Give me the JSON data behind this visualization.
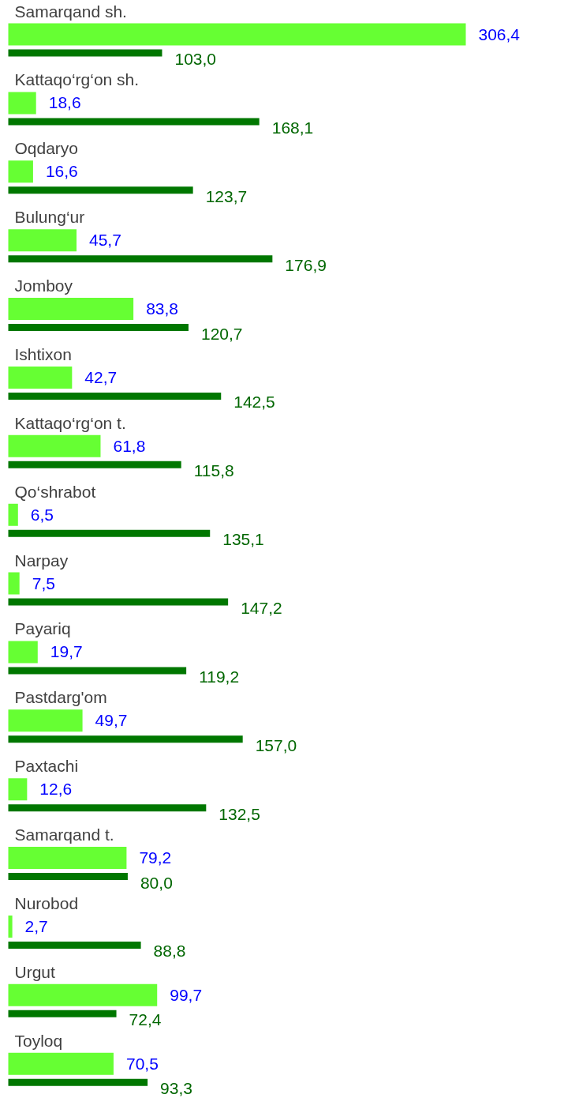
{
  "chart_data": {
    "type": "bar",
    "orientation": "horizontal",
    "grid": false,
    "categories": [
      "Samarqand sh.",
      "Kattaqo‘rg‘on sh.",
      "Oqdaryo",
      "Bulung‘ur",
      "Jomboy",
      "Ishtixon",
      "Kattaqo‘rg‘on t.",
      "Qo‘shrabot",
      "Narpay",
      "Payariq",
      "Pastdarg'om",
      "Paxtachi",
      "Samarqand t.",
      "Nurobod",
      "Urgut",
      "Toyloq"
    ],
    "series": [
      {
        "color": "#66ff33",
        "values": [
          306.4,
          18.6,
          16.6,
          45.7,
          83.8,
          42.7,
          61.8,
          6.5,
          7.5,
          19.7,
          49.7,
          12.6,
          79.2,
          2.7,
          99.7,
          70.5
        ],
        "value_labels": [
          "306,4",
          "18,6",
          "16,6",
          "45,7",
          "83,8",
          "42,7",
          "61,8",
          "6,5",
          "7,5",
          "19,7",
          "49,7",
          "12,6",
          "79,2",
          "2,7",
          "99,7",
          "70,5"
        ]
      },
      {
        "color": "#007700",
        "values": [
          103.0,
          168.1,
          123.7,
          176.9,
          120.7,
          142.5,
          115.8,
          135.1,
          147.2,
          119.2,
          157.0,
          132.5,
          80.0,
          88.8,
          72.4,
          93.3
        ],
        "value_labels": [
          "103,0",
          "168,1",
          "123,7",
          "176,9",
          "120,7",
          "142,5",
          "115,8",
          "135,1",
          "147,2",
          "119,2",
          "157,0",
          "132,5",
          "80,0",
          "88,8",
          "72,4",
          "93,3"
        ]
      }
    ]
  }
}
